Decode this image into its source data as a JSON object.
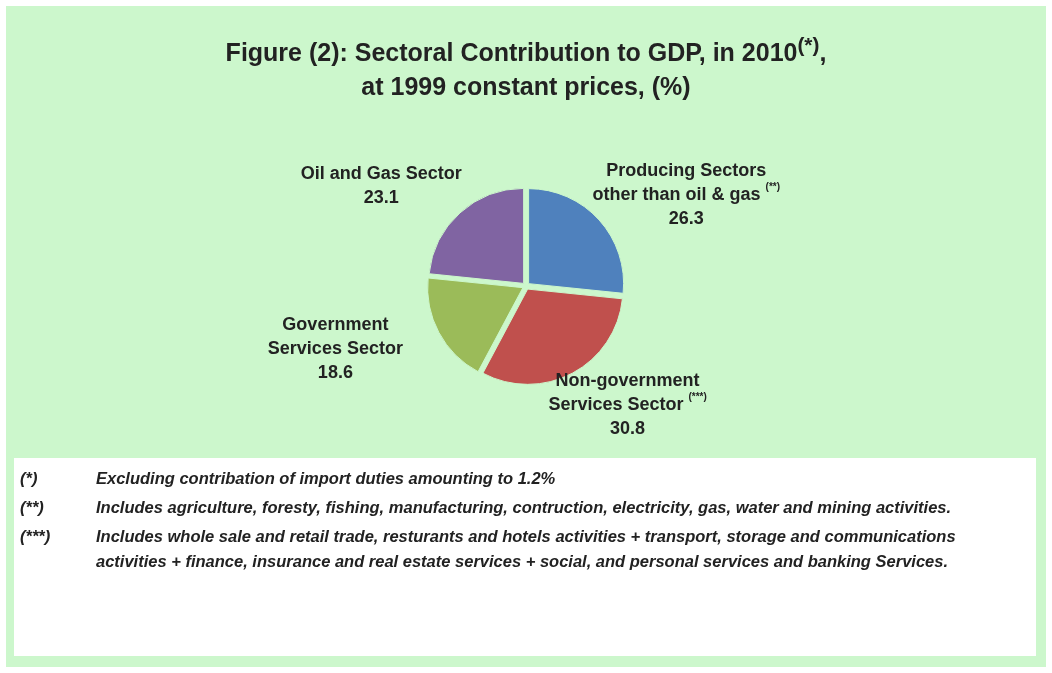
{
  "chart_data": {
    "type": "pie",
    "title": "Figure (2): Sectoral Contribution to GDP, in 2010$^{(*)}$,\nat 1999 constant prices, (%)",
    "categories": [
      "Producing Sectors other than oil & gas $^{(**)}$",
      "Non-government Services Sector $^{(***)}$",
      "Government Services Sector",
      "Oil and Gas Sector"
    ],
    "values": [
      26.3,
      30.8,
      18.6,
      23.1
    ],
    "colors": [
      "#4f81bd",
      "#c0504d",
      "#9bbb59",
      "#8064a2"
    ],
    "data_labels": true,
    "legend": false,
    "annotations": [
      "(*) Excluding contribation of import duties amounting to 1.2%",
      "(**) Includes agriculture, foresty, fishing, manufacturing, contruction, electricity, gas, water and mining activities.",
      "(***) Includes whole sale and retail trade, resturants and hotels activities + transport, storage and communications activities + finance, insurance and real estate services + social, and personal services and banking Services."
    ]
  }
}
